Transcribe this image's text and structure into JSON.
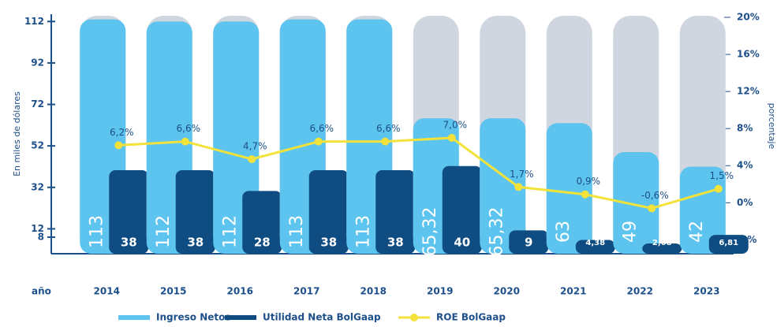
{
  "chart_data": {
    "type": "bar-line",
    "categories": [
      "2014",
      "2015",
      "2016",
      "2017",
      "2018",
      "2019",
      "2020",
      "2021",
      "2022",
      "2023"
    ],
    "x_axis_label": "año",
    "y_axis_label": "En miles de dólares",
    "y2_axis_label": "porcentaje",
    "ylim": [
      0,
      114
    ],
    "yticks": [
      112,
      92,
      72,
      52,
      32,
      12,
      8
    ],
    "y2lim": [
      -5.5,
      20
    ],
    "y2ticks": [
      {
        "value": 20,
        "label": "20%"
      },
      {
        "value": 16,
        "label": "16%"
      },
      {
        "value": 12,
        "label": "12%"
      },
      {
        "value": 8,
        "label": "8%"
      },
      {
        "value": 4,
        "label": "4%"
      },
      {
        "value": 0,
        "label": "0%"
      },
      {
        "value": -4,
        "label": "-4%"
      }
    ],
    "series": [
      {
        "name": "Ingreso Netos",
        "color": "#5cc4ee",
        "values": [
          113,
          112,
          112,
          113,
          113,
          65.32,
          65.32,
          63,
          49,
          42
        ],
        "value_labels": [
          "113",
          "112",
          "112",
          "113",
          "113",
          "65,32",
          "65,32",
          "63",
          "49",
          "42"
        ]
      },
      {
        "name": "Utilidad Neta BolGaap",
        "color": "#0f4c81",
        "values": [
          38,
          38,
          28,
          38,
          38,
          40,
          9,
          4.38,
          2.68,
          6.81
        ],
        "value_labels": [
          "38",
          "38",
          "28",
          "38",
          "38",
          "40",
          "9",
          "4,38",
          "2,68",
          "6,81"
        ]
      },
      {
        "name": "ROE BolGaap",
        "color": "#f2e23a",
        "axis": "y2",
        "values": [
          6.2,
          6.6,
          4.7,
          6.6,
          6.6,
          7.0,
          1.7,
          0.9,
          -0.6,
          1.5
        ],
        "value_labels": [
          "6,2%",
          "6,6%",
          "4,7%",
          "6,6%",
          "6,6%",
          "7,0%",
          "1,7%",
          "0,9%",
          "-0,6%",
          "1,5%"
        ]
      }
    ]
  }
}
